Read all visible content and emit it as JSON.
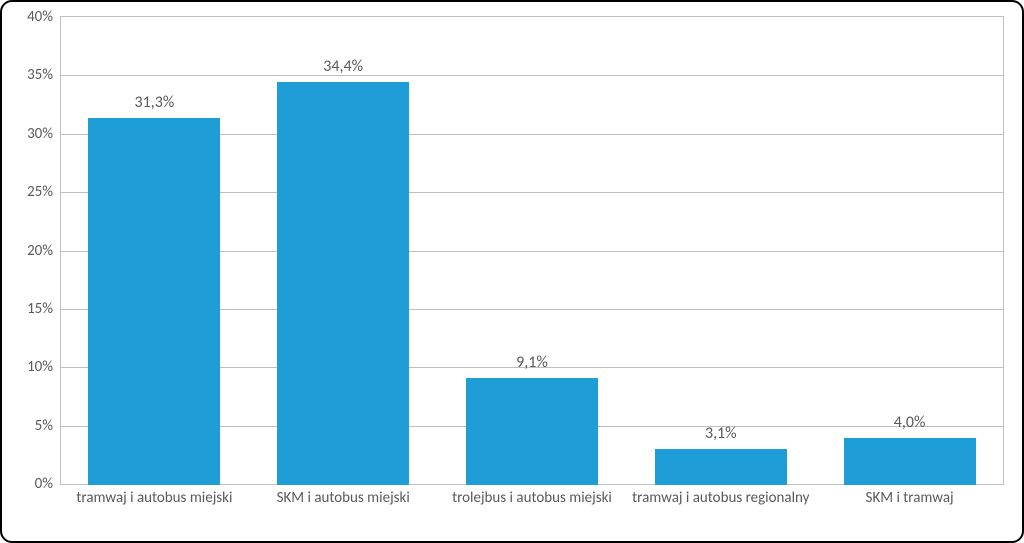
{
  "chart": {
    "type": "bar",
    "categories": [
      "tramwaj i autobus miejski",
      "SKM i autobus miejski",
      "trolejbus i autobus miejski",
      "tramwaj i autobus regionalny",
      "SKM i tramwaj"
    ],
    "values": [
      31.3,
      34.4,
      9.1,
      3.1,
      4.0
    ],
    "value_labels": [
      "31,3%",
      "34,4%",
      "9,1%",
      "3,1%",
      "4,0%"
    ],
    "bar_color": "#1f9dd6",
    "background_color": "#ffffff",
    "grid_color": "#bfbfbf",
    "border_color": "#000000",
    "border_radius": 12,
    "text_color": "#595959",
    "ylim": [
      0,
      40
    ],
    "ytick_step": 5,
    "ytick_labels": [
      "0%",
      "5%",
      "10%",
      "15%",
      "20%",
      "25%",
      "30%",
      "35%",
      "40%"
    ],
    "bar_width": 0.7,
    "label_fontsize": 15,
    "datalabel_fontsize": 16
  }
}
